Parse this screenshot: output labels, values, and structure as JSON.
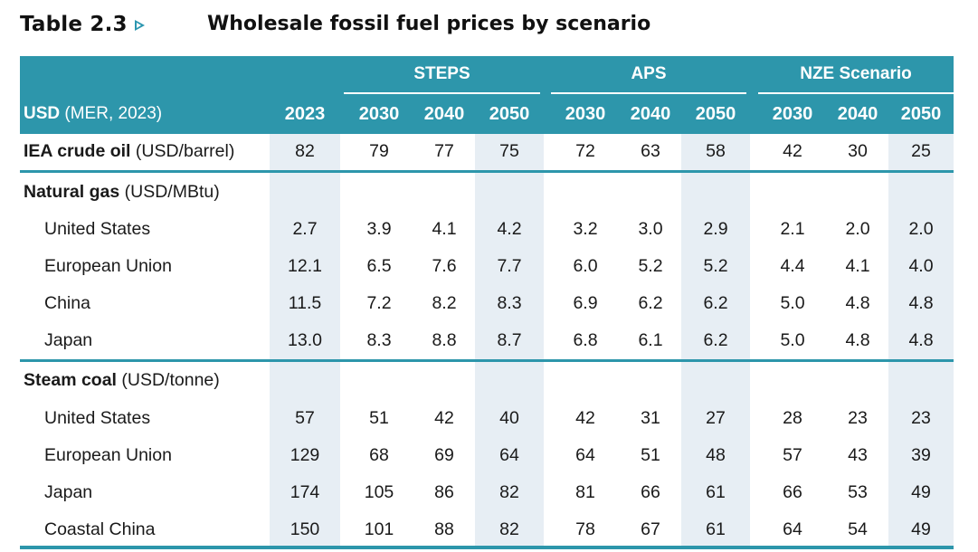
{
  "title": {
    "number": "Table 2.3",
    "text": "Wholesale fossil fuel prices by scenario"
  },
  "header": {
    "unit_bold": "USD",
    "unit_rest": " (MER, 2023)",
    "groups": [
      "STEPS",
      "APS",
      "NZE Scenario"
    ],
    "years": [
      "2023",
      "2030",
      "2040",
      "2050",
      "2030",
      "2040",
      "2050",
      "2030",
      "2040",
      "2050"
    ]
  },
  "crude": {
    "label_bold": "IEA crude oil",
    "label_rest": " (USD/barrel)",
    "values": [
      "82",
      "79",
      "77",
      "75",
      "72",
      "63",
      "58",
      "42",
      "30",
      "25"
    ]
  },
  "gas": {
    "label_bold": "Natural gas",
    "label_rest": " (USD/MBtu)",
    "rows": [
      {
        "label": "United States",
        "values": [
          "2.7",
          "3.9",
          "4.1",
          "4.2",
          "3.2",
          "3.0",
          "2.9",
          "2.1",
          "2.0",
          "2.0"
        ]
      },
      {
        "label": "European Union",
        "values": [
          "12.1",
          "6.5",
          "7.6",
          "7.7",
          "6.0",
          "5.2",
          "5.2",
          "4.4",
          "4.1",
          "4.0"
        ]
      },
      {
        "label": "China",
        "values": [
          "11.5",
          "7.2",
          "8.2",
          "8.3",
          "6.9",
          "6.2",
          "6.2",
          "5.0",
          "4.8",
          "4.8"
        ]
      },
      {
        "label": "Japan",
        "values": [
          "13.0",
          "8.3",
          "8.8",
          "8.7",
          "6.8",
          "6.1",
          "6.2",
          "5.0",
          "4.8",
          "4.8"
        ]
      }
    ]
  },
  "coal": {
    "label_bold": "Steam coal",
    "label_rest": " (USD/tonne)",
    "rows": [
      {
        "label": "United States",
        "values": [
          "57",
          "51",
          "42",
          "40",
          "42",
          "31",
          "27",
          "28",
          "23",
          "23"
        ]
      },
      {
        "label": "European Union",
        "values": [
          "129",
          "68",
          "69",
          "64",
          "64",
          "51",
          "48",
          "57",
          "43",
          "39"
        ]
      },
      {
        "label": "Japan",
        "values": [
          "174",
          "105",
          "86",
          "82",
          "81",
          "66",
          "61",
          "66",
          "53",
          "49"
        ]
      },
      {
        "label": "Coastal China",
        "values": [
          "150",
          "101",
          "88",
          "82",
          "78",
          "67",
          "61",
          "64",
          "54",
          "49"
        ]
      }
    ]
  },
  "colors": {
    "header_bg": "#2d96ab",
    "shade": "#e7eef4",
    "arrow": "#2b96b0"
  }
}
